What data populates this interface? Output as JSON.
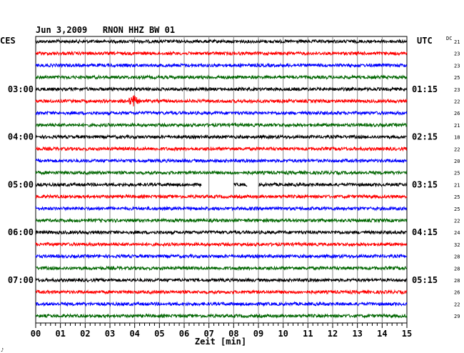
{
  "chart_data": {
    "type": "line",
    "title": "Jun 3,2009   RNON HHZ BW 01",
    "left_label": "CES",
    "right_label": "UTC",
    "dc_label": "DC",
    "xlabel": "Zeit [min]",
    "xlim": [
      0,
      15
    ],
    "x_ticks": [
      "00",
      "01",
      "02",
      "03",
      "04",
      "05",
      "06",
      "07",
      "08",
      "09",
      "10",
      "11",
      "12",
      "13",
      "14",
      "15"
    ],
    "row_minutes": 15,
    "colors": [
      "#000000",
      "#ff0000",
      "#0000ff",
      "#006600"
    ],
    "left_hour_labels": [
      {
        "row": 4,
        "text": "03:00"
      },
      {
        "row": 8,
        "text": "04:00"
      },
      {
        "row": 12,
        "text": "05:00"
      },
      {
        "row": 16,
        "text": "06:00"
      },
      {
        "row": 20,
        "text": "07:00"
      }
    ],
    "right_hour_labels": [
      {
        "row": 4,
        "text": "01:15"
      },
      {
        "row": 8,
        "text": "02:15"
      },
      {
        "row": 12,
        "text": "03:15"
      },
      {
        "row": 16,
        "text": "04:15"
      },
      {
        "row": 20,
        "text": "05:15"
      }
    ],
    "dc_values": [
      "21",
      "23",
      "23",
      "25",
      "23",
      "22",
      "26",
      "21",
      "18",
      "22",
      "20",
      "25",
      "21",
      "25",
      "25",
      "22",
      "24",
      "32",
      "28",
      "28",
      "28",
      "26",
      "22",
      "29"
    ],
    "gaps": [
      {
        "row": 12,
        "from_min": 6.7,
        "to_min": 8.0
      },
      {
        "row": 12,
        "from_min": 8.55,
        "to_min": 9.0
      }
    ],
    "events": [
      {
        "row": 5,
        "at_min": 3.95,
        "amplitude": 7
      }
    ],
    "grid": true,
    "footer_mark": "♪"
  }
}
